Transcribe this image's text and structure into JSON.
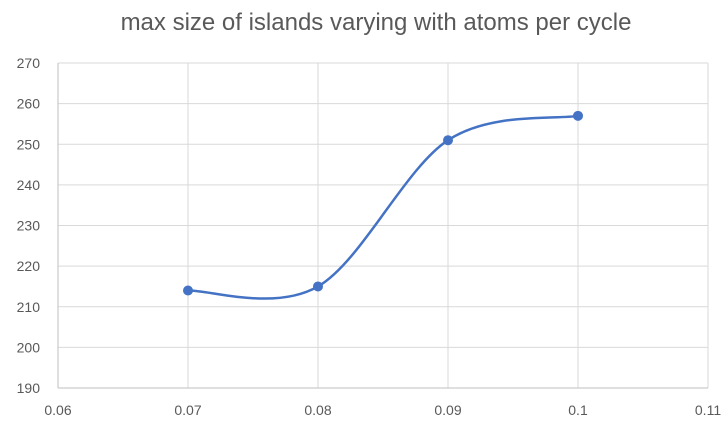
{
  "chart_data": {
    "type": "scatter",
    "title": "max size of islands varying with atoms per cycle",
    "xlabel": "",
    "ylabel": "",
    "xlim": [
      0.06,
      0.11
    ],
    "ylim": [
      190,
      270
    ],
    "x_ticks": [
      "0.06",
      "0.07",
      "0.08",
      "0.09",
      "0.1",
      "0.11"
    ],
    "y_ticks": [
      "190",
      "200",
      "210",
      "220",
      "230",
      "240",
      "250",
      "260",
      "270"
    ],
    "x_tick_values": [
      0.06,
      0.07,
      0.08,
      0.09,
      0.1,
      0.11
    ],
    "y_tick_values": [
      190,
      200,
      210,
      220,
      230,
      240,
      250,
      260,
      270
    ],
    "smooth_line": true,
    "markers": true,
    "grid": true,
    "legend": "none",
    "series": [
      {
        "color": "#4472c4",
        "x": [
          0.07,
          0.08,
          0.09,
          0.1
        ],
        "y": [
          214,
          215,
          251,
          257
        ]
      }
    ]
  }
}
